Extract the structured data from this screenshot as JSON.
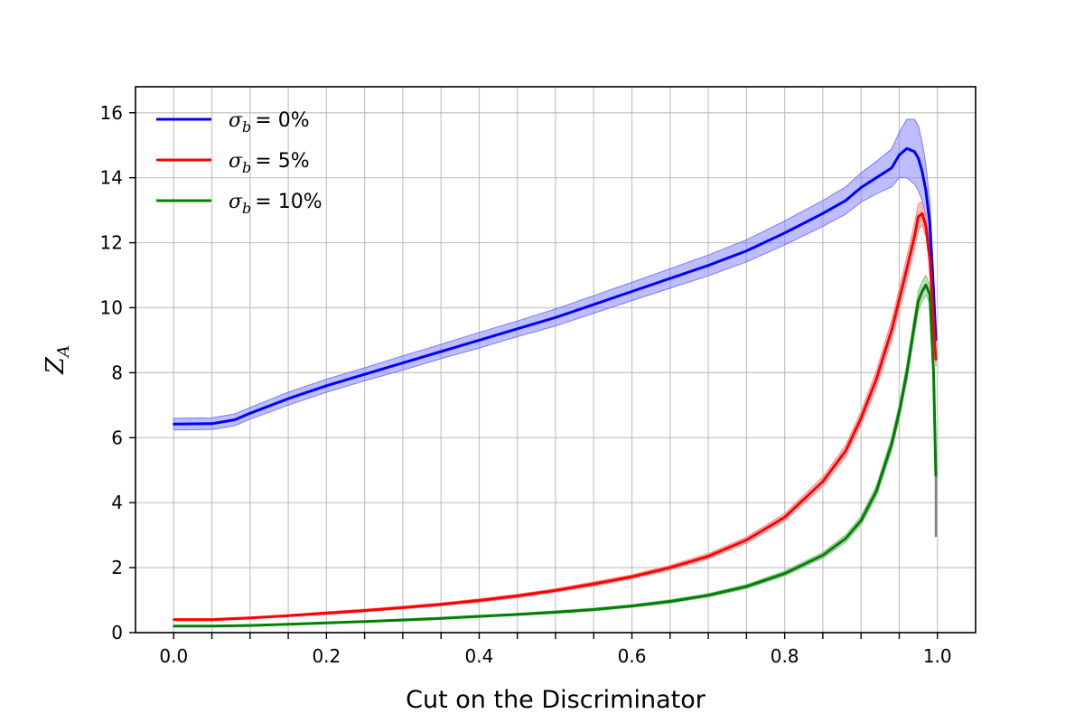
{
  "chart_data": {
    "type": "line",
    "title": "",
    "xlabel": "Cut on the Discriminator",
    "ylabel": "Z_A",
    "xlim": [
      -0.05,
      1.05
    ],
    "ylim": [
      0,
      16.8
    ],
    "grid": true,
    "legend_position": "top-left",
    "x_ticks": [
      0.0,
      0.05,
      0.1,
      0.15,
      0.2,
      0.25,
      0.3,
      0.35,
      0.4,
      0.45,
      0.5,
      0.55,
      0.6,
      0.65,
      0.7,
      0.75,
      0.8,
      0.85,
      0.9,
      0.95,
      1.0
    ],
    "x_tick_labels": [
      "0.0",
      "0.2",
      "0.4",
      "0.6",
      "0.8",
      "1.0"
    ],
    "x_tick_label_values": [
      0.0,
      0.2,
      0.4,
      0.6,
      0.8,
      1.0
    ],
    "y_ticks": [
      0,
      2,
      4,
      6,
      8,
      10,
      12,
      14,
      16
    ],
    "y_tick_labels": [
      "0",
      "2",
      "4",
      "6",
      "8",
      "10",
      "12",
      "14",
      "16"
    ],
    "series": [
      {
        "name": "σb = 0%",
        "legend_prefix": "σ",
        "legend_subscript": "b",
        "legend_value": "= 0%",
        "color": "#0000ff",
        "band_color": "#7b7bff",
        "x": [
          0.0,
          0.05,
          0.08,
          0.1,
          0.15,
          0.2,
          0.25,
          0.3,
          0.35,
          0.4,
          0.45,
          0.5,
          0.55,
          0.6,
          0.65,
          0.7,
          0.75,
          0.8,
          0.85,
          0.88,
          0.9,
          0.92,
          0.94,
          0.95,
          0.96,
          0.97,
          0.975,
          0.98,
          0.985,
          0.99,
          0.995,
          0.998
        ],
        "y": [
          6.42,
          6.43,
          6.55,
          6.75,
          7.2,
          7.6,
          7.95,
          8.3,
          8.65,
          9.0,
          9.35,
          9.7,
          10.1,
          10.5,
          10.9,
          11.3,
          11.75,
          12.3,
          12.9,
          13.3,
          13.7,
          14.0,
          14.3,
          14.7,
          14.9,
          14.8,
          14.6,
          14.2,
          13.6,
          12.6,
          10.5,
          9.0
        ],
        "band": [
          0.18,
          0.18,
          0.18,
          0.18,
          0.2,
          0.2,
          0.2,
          0.22,
          0.22,
          0.24,
          0.24,
          0.26,
          0.27,
          0.28,
          0.3,
          0.32,
          0.34,
          0.37,
          0.4,
          0.42,
          0.45,
          0.5,
          0.58,
          0.7,
          0.9,
          1.0,
          1.0,
          0.9,
          0.8,
          0.7,
          0.5,
          0.4
        ]
      },
      {
        "name": "σb = 5%",
        "legend_prefix": "σ",
        "legend_subscript": "b",
        "legend_value": "= 5%",
        "color": "#ff0000",
        "band_color": "#ff8080",
        "x": [
          0.0,
          0.05,
          0.1,
          0.15,
          0.2,
          0.25,
          0.3,
          0.35,
          0.4,
          0.45,
          0.5,
          0.55,
          0.6,
          0.65,
          0.7,
          0.75,
          0.8,
          0.85,
          0.88,
          0.9,
          0.92,
          0.94,
          0.96,
          0.97,
          0.975,
          0.98,
          0.985,
          0.99,
          0.995,
          0.998
        ],
        "y": [
          0.4,
          0.4,
          0.45,
          0.52,
          0.6,
          0.68,
          0.77,
          0.87,
          0.99,
          1.13,
          1.3,
          1.5,
          1.72,
          2.0,
          2.35,
          2.85,
          3.55,
          4.65,
          5.6,
          6.6,
          7.8,
          9.3,
          11.2,
          12.2,
          12.8,
          12.9,
          12.5,
          11.5,
          9.6,
          8.4
        ],
        "band": [
          0.03,
          0.03,
          0.03,
          0.03,
          0.04,
          0.04,
          0.04,
          0.04,
          0.05,
          0.05,
          0.05,
          0.06,
          0.06,
          0.07,
          0.08,
          0.09,
          0.11,
          0.14,
          0.17,
          0.2,
          0.25,
          0.3,
          0.36,
          0.4,
          0.4,
          0.35,
          0.3,
          0.25,
          0.2,
          0.2
        ]
      },
      {
        "name": "σb = 10%",
        "legend_prefix": "σ",
        "legend_subscript": "b",
        "legend_value": "= 10%",
        "color": "#008000",
        "band_color": "#80c080",
        "x": [
          0.0,
          0.05,
          0.1,
          0.15,
          0.2,
          0.25,
          0.3,
          0.35,
          0.4,
          0.45,
          0.5,
          0.55,
          0.6,
          0.65,
          0.7,
          0.75,
          0.8,
          0.85,
          0.88,
          0.9,
          0.92,
          0.94,
          0.95,
          0.96,
          0.97,
          0.975,
          0.98,
          0.985,
          0.99,
          0.995,
          0.998
        ],
        "y": [
          0.2,
          0.2,
          0.22,
          0.26,
          0.3,
          0.34,
          0.39,
          0.44,
          0.5,
          0.56,
          0.63,
          0.71,
          0.82,
          0.96,
          1.15,
          1.42,
          1.82,
          2.38,
          2.9,
          3.45,
          4.35,
          5.8,
          6.8,
          8.0,
          9.5,
          10.2,
          10.5,
          10.7,
          10.4,
          8.0,
          4.8
        ],
        "band": [
          0.02,
          0.02,
          0.02,
          0.02,
          0.02,
          0.02,
          0.03,
          0.03,
          0.03,
          0.03,
          0.04,
          0.04,
          0.04,
          0.05,
          0.05,
          0.06,
          0.07,
          0.09,
          0.11,
          0.13,
          0.16,
          0.2,
          0.22,
          0.26,
          0.3,
          0.3,
          0.3,
          0.3,
          0.28,
          0.2,
          0.2
        ]
      }
    ],
    "drop_tail": {
      "color": "#808080",
      "x": [
        0.998,
        0.998
      ],
      "y": [
        4.8,
        2.95
      ]
    }
  }
}
